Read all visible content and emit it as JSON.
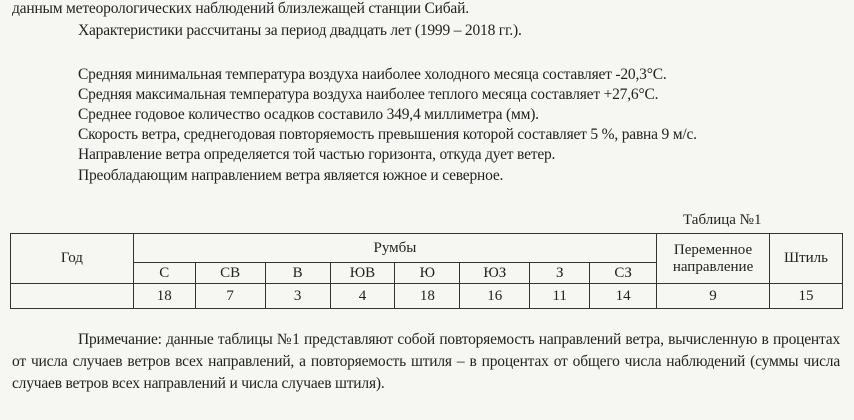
{
  "intro": {
    "line1": "данным метеорологических наблюдений близлежащей станции Сибай.",
    "line2": "Характеристики рассчитаны за период двадцать лет (1999 – 2018 гг.)."
  },
  "facts": [
    "Средняя минимальная температура воздуха наиболее холодного месяца составляет -20,3°С.",
    "Средняя максимальная температура воздуха наиболее теплого месяца составляет +27,6°С.",
    "Среднее годовое количество осадков составило 349,4 миллиметра (мм).",
    "Скорость ветра, среднегодовая повторяемость превышения которой составляет 5 %, равна 9 м/с.",
    "Направление ветра определяется той частью горизонта, откуда дует ветер.",
    "Преобладающим направлением ветра является южное и северное."
  ],
  "table": {
    "caption": "Таблица №1",
    "year_header": "Год",
    "rumbs_header": "Румбы",
    "variable_header": "Переменное направление",
    "calm_header": "Штиль",
    "directions": [
      "С",
      "СВ",
      "В",
      "ЮВ",
      "Ю",
      "ЮЗ",
      "З",
      "СЗ"
    ],
    "values": [
      "18",
      "7",
      "3",
      "4",
      "18",
      "16",
      "11",
      "14"
    ],
    "variable_value": "9",
    "calm_value": "15"
  },
  "note": "Примечание: данные таблицы №1 представляют собой повторяемость направлений ветра, вычисленную в процентах от числа случаев ветров всех направлений, а повторяемость штиля – в процентах от общего числа наблюдений (суммы числа случаев ветров всех направлений и числа случаев штиля)."
}
